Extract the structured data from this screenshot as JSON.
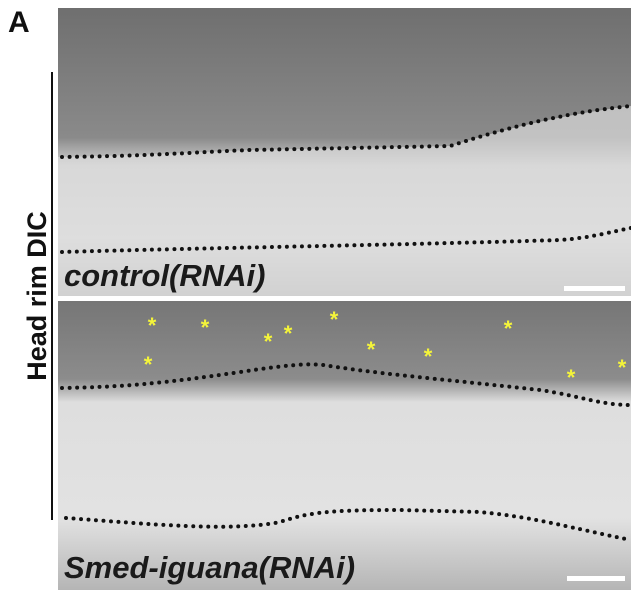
{
  "panel_label": "A",
  "side_label": "Head rim DIC",
  "panels": [
    {
      "label": "control(RNAi)"
    },
    {
      "label": "Smed-iguana(RNAi)",
      "marker": "*"
    }
  ]
}
